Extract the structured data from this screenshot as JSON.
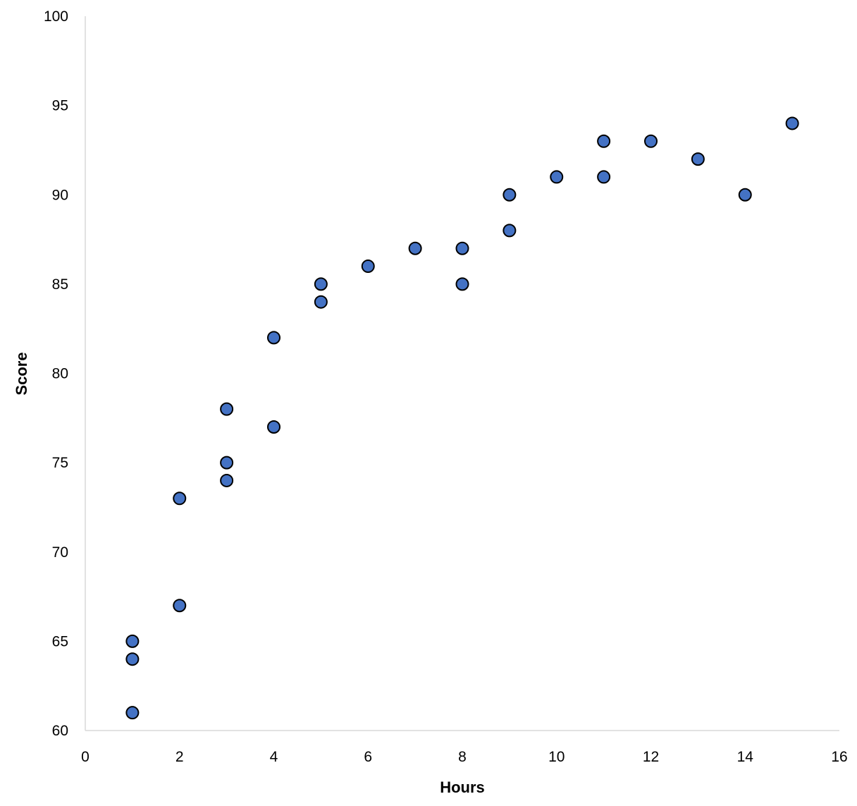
{
  "chart_data": {
    "type": "scatter",
    "title": "",
    "xlabel": "Hours",
    "ylabel": "Score",
    "xlim": [
      0,
      16
    ],
    "ylim": [
      60,
      100
    ],
    "x_ticks": [
      0,
      2,
      4,
      6,
      8,
      10,
      12,
      14,
      16
    ],
    "y_ticks": [
      60,
      65,
      70,
      75,
      80,
      85,
      90,
      95,
      100
    ],
    "grid": false,
    "legend": "none",
    "marker_fill": "#4472C4",
    "marker_edge": "#000000",
    "axis_color": "#d9d9d9",
    "points": [
      {
        "x": 1,
        "y": 65
      },
      {
        "x": 1,
        "y": 64
      },
      {
        "x": 1,
        "y": 61
      },
      {
        "x": 2,
        "y": 73
      },
      {
        "x": 2,
        "y": 67
      },
      {
        "x": 3,
        "y": 78
      },
      {
        "x": 3,
        "y": 75
      },
      {
        "x": 3,
        "y": 74
      },
      {
        "x": 4,
        "y": 82
      },
      {
        "x": 4,
        "y": 77
      },
      {
        "x": 5,
        "y": 85
      },
      {
        "x": 5,
        "y": 84
      },
      {
        "x": 6,
        "y": 86
      },
      {
        "x": 7,
        "y": 87
      },
      {
        "x": 8,
        "y": 87
      },
      {
        "x": 8,
        "y": 85
      },
      {
        "x": 9,
        "y": 90
      },
      {
        "x": 9,
        "y": 88
      },
      {
        "x": 10,
        "y": 91
      },
      {
        "x": 11,
        "y": 93
      },
      {
        "x": 11,
        "y": 91
      },
      {
        "x": 12,
        "y": 93
      },
      {
        "x": 13,
        "y": 92
      },
      {
        "x": 14,
        "y": 90
      },
      {
        "x": 15,
        "y": 94
      }
    ]
  }
}
